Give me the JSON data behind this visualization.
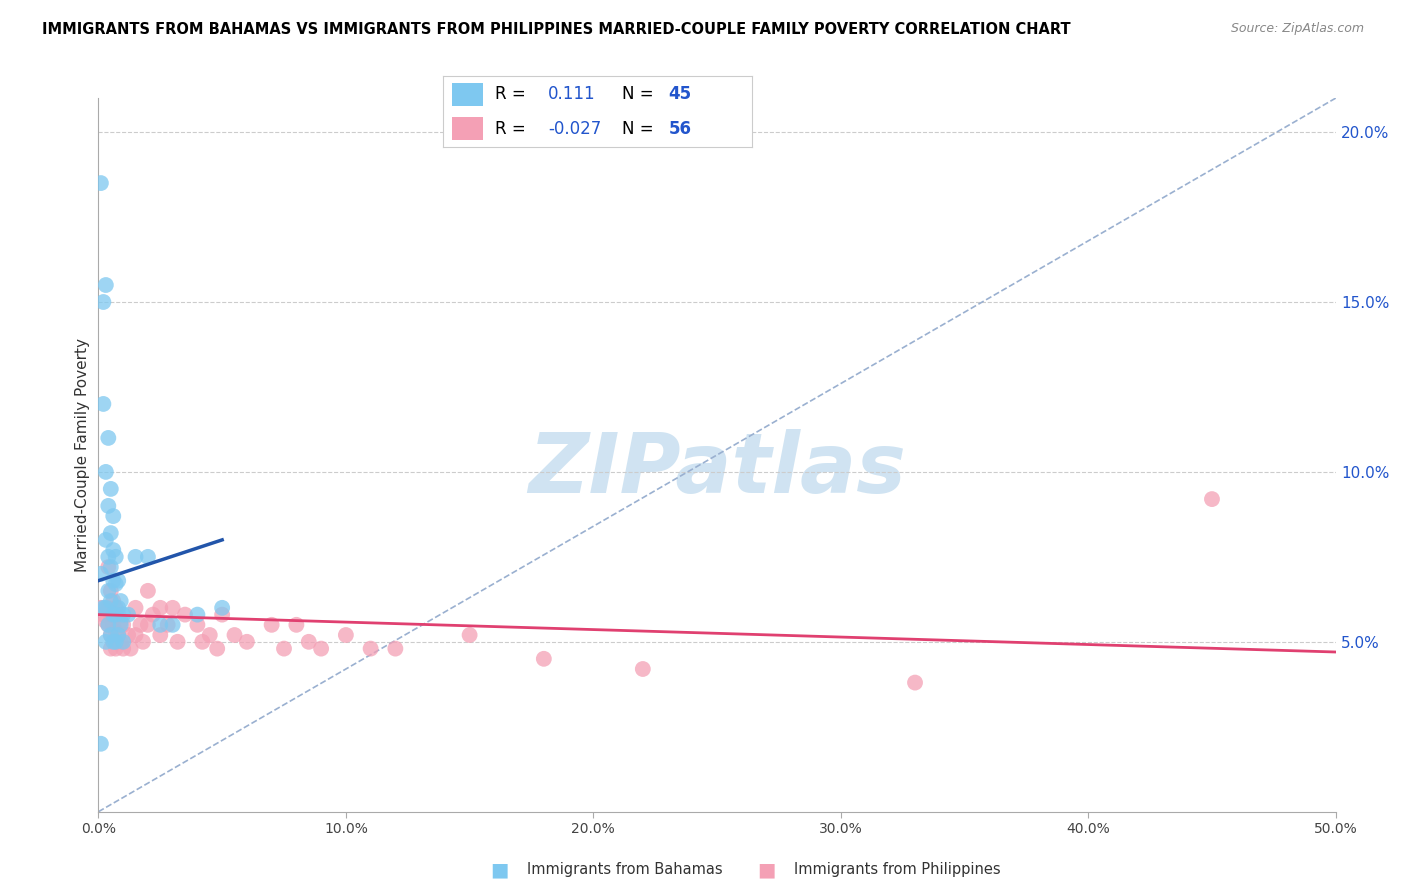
{
  "title": "IMMIGRANTS FROM BAHAMAS VS IMMIGRANTS FROM PHILIPPINES MARRIED-COUPLE FAMILY POVERTY CORRELATION CHART",
  "source": "Source: ZipAtlas.com",
  "ylabel": "Married-Couple Family Poverty",
  "xmin": 0.0,
  "xmax": 0.5,
  "ymin": 0.0,
  "ymax": 0.21,
  "yticks": [
    0.05,
    0.1,
    0.15,
    0.2
  ],
  "ytick_labels": [
    "5.0%",
    "10.0%",
    "15.0%",
    "20.0%"
  ],
  "xticks": [
    0.0,
    0.1,
    0.2,
    0.3,
    0.4,
    0.5
  ],
  "xtick_labels": [
    "0.0%",
    "10.0%",
    "20.0%",
    "30.0%",
    "40.0%",
    "50.0%"
  ],
  "bahamas_R": 0.111,
  "bahamas_N": 45,
  "philippines_R": -0.027,
  "philippines_N": 56,
  "bahamas_color": "#7ec8f0",
  "philippines_color": "#f4a0b5",
  "bahamas_line_color": "#2255aa",
  "philippines_line_color": "#e04070",
  "dash_line_color": "#9ab0d0",
  "watermark_color": "#c8dff0",
  "bahamas_x": [
    0.001,
    0.001,
    0.001,
    0.002,
    0.002,
    0.002,
    0.003,
    0.003,
    0.003,
    0.003,
    0.003,
    0.004,
    0.004,
    0.004,
    0.004,
    0.004,
    0.005,
    0.005,
    0.005,
    0.005,
    0.005,
    0.006,
    0.006,
    0.006,
    0.006,
    0.006,
    0.007,
    0.007,
    0.007,
    0.007,
    0.008,
    0.008,
    0.008,
    0.009,
    0.009,
    0.01,
    0.01,
    0.012,
    0.015,
    0.02,
    0.025,
    0.03,
    0.04,
    0.05,
    0.001
  ],
  "bahamas_y": [
    0.185,
    0.07,
    0.035,
    0.15,
    0.12,
    0.06,
    0.155,
    0.1,
    0.08,
    0.06,
    0.05,
    0.11,
    0.09,
    0.075,
    0.065,
    0.055,
    0.095,
    0.082,
    0.072,
    0.062,
    0.052,
    0.087,
    0.077,
    0.068,
    0.058,
    0.05,
    0.075,
    0.067,
    0.058,
    0.05,
    0.068,
    0.06,
    0.052,
    0.062,
    0.055,
    0.058,
    0.05,
    0.058,
    0.075,
    0.075,
    0.055,
    0.055,
    0.058,
    0.06,
    0.02
  ],
  "philippines_x": [
    0.001,
    0.002,
    0.003,
    0.004,
    0.004,
    0.004,
    0.005,
    0.005,
    0.005,
    0.005,
    0.006,
    0.006,
    0.007,
    0.007,
    0.007,
    0.008,
    0.008,
    0.009,
    0.009,
    0.01,
    0.01,
    0.012,
    0.013,
    0.015,
    0.015,
    0.017,
    0.018,
    0.02,
    0.02,
    0.022,
    0.025,
    0.025,
    0.028,
    0.03,
    0.032,
    0.035,
    0.04,
    0.042,
    0.045,
    0.048,
    0.05,
    0.055,
    0.06,
    0.07,
    0.075,
    0.08,
    0.085,
    0.09,
    0.1,
    0.11,
    0.12,
    0.15,
    0.18,
    0.22,
    0.33,
    0.45
  ],
  "philippines_y": [
    0.06,
    0.058,
    0.056,
    0.072,
    0.06,
    0.055,
    0.065,
    0.058,
    0.052,
    0.048,
    0.062,
    0.055,
    0.06,
    0.053,
    0.048,
    0.058,
    0.052,
    0.056,
    0.05,
    0.055,
    0.048,
    0.052,
    0.048,
    0.06,
    0.052,
    0.055,
    0.05,
    0.065,
    0.055,
    0.058,
    0.06,
    0.052,
    0.055,
    0.06,
    0.05,
    0.058,
    0.055,
    0.05,
    0.052,
    0.048,
    0.058,
    0.052,
    0.05,
    0.055,
    0.048,
    0.055,
    0.05,
    0.048,
    0.052,
    0.048,
    0.048,
    0.052,
    0.045,
    0.042,
    0.038,
    0.092
  ],
  "bahamas_line_x": [
    0.0,
    0.05
  ],
  "bahamas_line_y": [
    0.068,
    0.08
  ],
  "philippines_line_x": [
    0.0,
    0.5
  ],
  "philippines_line_y": [
    0.058,
    0.047
  ],
  "dash_line_x": [
    0.0,
    0.5
  ],
  "dash_line_y": [
    0.0,
    0.21
  ]
}
